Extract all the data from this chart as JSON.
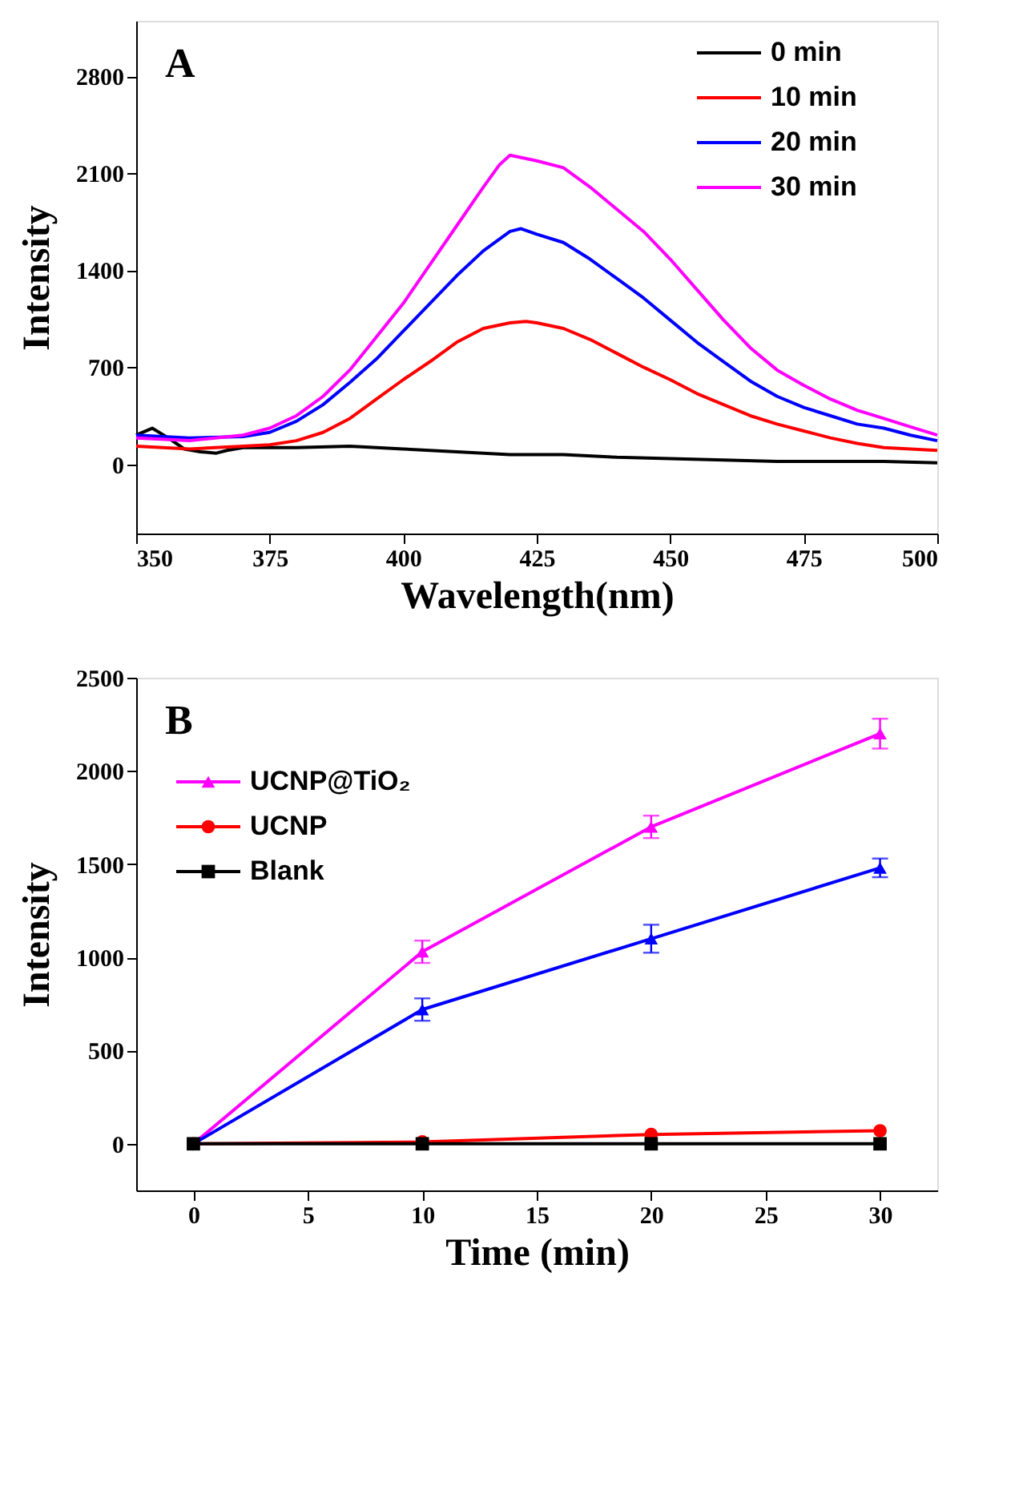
{
  "chart_data": [
    {
      "type": "line",
      "title": "A",
      "xlabel": "Wavelength(nm)",
      "ylabel": "Intensity",
      "xlim": [
        350,
        500
      ],
      "xticks": [
        350,
        375,
        400,
        425,
        450,
        475,
        500
      ],
      "ylim": [
        -500,
        3200
      ],
      "yticks": [
        0,
        700,
        1400,
        2100,
        2800
      ],
      "legend": "top right",
      "marker": "none",
      "line_style": "solid",
      "series": [
        {
          "name": "0   min",
          "color": "#000000",
          "x": [
            350,
            353,
            356,
            359,
            362,
            365,
            367,
            370,
            380,
            390,
            400,
            410,
            420,
            430,
            440,
            450,
            460,
            470,
            480,
            490,
            500
          ],
          "values": [
            210,
            260,
            190,
            110,
            90,
            80,
            100,
            120,
            120,
            130,
            110,
            90,
            70,
            70,
            50,
            40,
            30,
            20,
            20,
            20,
            10
          ]
        },
        {
          "name": "10 min",
          "color": "#ff0000",
          "x": [
            350,
            360,
            370,
            375,
            380,
            385,
            390,
            395,
            400,
            405,
            410,
            415,
            420,
            423,
            425,
            430,
            435,
            440,
            445,
            450,
            455,
            460,
            465,
            470,
            475,
            480,
            485,
            490,
            500
          ],
          "values": [
            130,
            110,
            130,
            140,
            170,
            230,
            330,
            470,
            610,
            740,
            880,
            980,
            1020,
            1030,
            1020,
            980,
            900,
            800,
            700,
            610,
            510,
            430,
            350,
            290,
            240,
            190,
            150,
            120,
            100
          ]
        },
        {
          "name": "20 min",
          "color": "#0000ff",
          "x": [
            350,
            360,
            370,
            375,
            380,
            385,
            390,
            395,
            400,
            405,
            410,
            415,
            420,
            422,
            425,
            430,
            435,
            440,
            445,
            450,
            455,
            460,
            465,
            470,
            475,
            480,
            485,
            490,
            495,
            500
          ],
          "values": [
            210,
            190,
            200,
            230,
            310,
            430,
            590,
            760,
            960,
            1160,
            1360,
            1540,
            1680,
            1700,
            1660,
            1600,
            1480,
            1340,
            1200,
            1040,
            880,
            740,
            600,
            490,
            410,
            350,
            290,
            260,
            210,
            170
          ]
        },
        {
          "name": "30 min",
          "color": "#ff00ff",
          "x": [
            350,
            360,
            370,
            375,
            380,
            385,
            390,
            395,
            400,
            405,
            410,
            415,
            418,
            420,
            425,
            430,
            435,
            440,
            445,
            450,
            455,
            460,
            465,
            470,
            475,
            480,
            485,
            490,
            495,
            500
          ],
          "values": [
            190,
            170,
            210,
            260,
            350,
            490,
            680,
            920,
            1160,
            1440,
            1720,
            2000,
            2160,
            2230,
            2190,
            2140,
            2000,
            1840,
            1680,
            1480,
            1260,
            1040,
            840,
            680,
            570,
            470,
            390,
            330,
            270,
            210
          ]
        }
      ]
    },
    {
      "type": "line",
      "title": "B",
      "xlabel": "Time (min)",
      "ylabel": "Intensity",
      "xlim": [
        -2.5,
        32.5
      ],
      "xticks": [
        0,
        5,
        10,
        15,
        20,
        25,
        30
      ],
      "ylim": [
        -250,
        2500
      ],
      "yticks": [
        0,
        500,
        1000,
        1500,
        2000,
        2500
      ],
      "legend": "top left",
      "line_style": "solid",
      "x": [
        0,
        10,
        20,
        30
      ],
      "series": [
        {
          "name": "UCNP@TiO₂",
          "color": "#ff00ff",
          "marker": "triangle",
          "values": [
            0,
            1030,
            1700,
            2200
          ],
          "errors": [
            null,
            60,
            60,
            80
          ]
        },
        {
          "color": "#0000ff",
          "marker": "triangle",
          "values": [
            0,
            720,
            1100,
            1480
          ],
          "errors": [
            null,
            60,
            75,
            50
          ]
        },
        {
          "name": "UCNP",
          "color": "#ff0000",
          "marker": "circle",
          "values": [
            0,
            10,
            50,
            70
          ]
        },
        {
          "name": "Blank",
          "color": "#000000",
          "marker": "square",
          "values": [
            0,
            0,
            0,
            0
          ]
        }
      ]
    }
  ]
}
